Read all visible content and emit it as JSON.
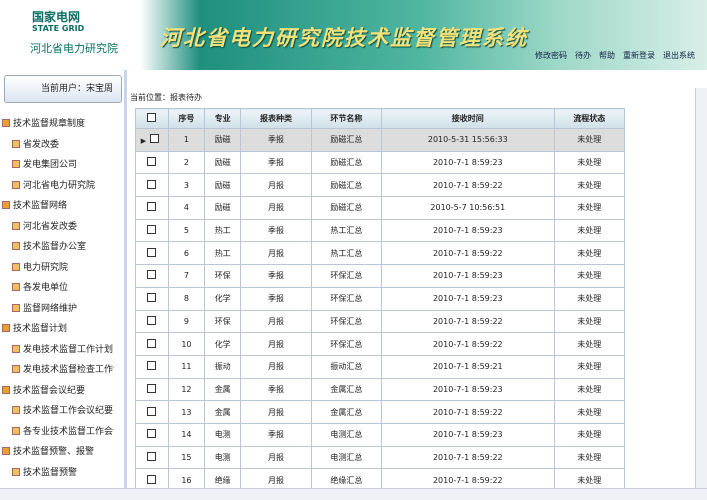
{
  "header": {
    "logo_cn": "国家电网",
    "logo_en": "STATE GRID",
    "org": "河北省电力研究院",
    "title": "河北省电力研究院技术监督管理系统",
    "nav": [
      "修改密码",
      "待办",
      "帮助",
      "重新登录",
      "退出系统"
    ]
  },
  "sidebar": {
    "user": "当前用户：宋宝周",
    "tree": [
      {
        "label": "技术监督规章制度",
        "children": [
          "省发改委",
          "发电集团公司",
          "河北省电力研究院"
        ]
      },
      {
        "label": "技术监督网络",
        "children": [
          "河北省发改委",
          "技术监督办公室",
          "电力研究院",
          "各发电单位",
          "监督网络维护"
        ]
      },
      {
        "label": "技术监督计划",
        "children": [
          "发电技术监督工作计划",
          "发电技术监督检查工作计划"
        ]
      },
      {
        "label": "技术监督会议纪要",
        "children": [
          "技术监督工作会议纪要",
          "各专业技术监督工作会议纪"
        ]
      },
      {
        "label": "技术监督预警、报警",
        "children": [
          "技术监督预警"
        ]
      }
    ]
  },
  "breadcrumb": "当前位置：报表待办",
  "table": {
    "columns": [
      "序号",
      "专业",
      "报表种类",
      "环节名称",
      "接收时间",
      "流程状态"
    ],
    "rows": [
      [
        "1",
        "励磁",
        "季报",
        "励磁汇总",
        "2010-5-31 15:56:33",
        "未处理"
      ],
      [
        "2",
        "励磁",
        "季报",
        "励磁汇总",
        "2010-7-1 8:59:23",
        "未处理"
      ],
      [
        "3",
        "励磁",
        "月报",
        "励磁汇总",
        "2010-7-1 8:59:22",
        "未处理"
      ],
      [
        "4",
        "励磁",
        "月报",
        "励磁汇总",
        "2010-5-7 10:56:51",
        "未处理"
      ],
      [
        "5",
        "热工",
        "季报",
        "热工汇总",
        "2010-7-1 8:59:23",
        "未处理"
      ],
      [
        "6",
        "热工",
        "月报",
        "热工汇总",
        "2010-7-1 8:59:22",
        "未处理"
      ],
      [
        "7",
        "环保",
        "季报",
        "环保汇总",
        "2010-7-1 8:59:23",
        "未处理"
      ],
      [
        "8",
        "化学",
        "季报",
        "环保汇总",
        "2010-7-1 8:59:23",
        "未处理"
      ],
      [
        "9",
        "环保",
        "月报",
        "环保汇总",
        "2010-7-1 8:59:22",
        "未处理"
      ],
      [
        "10",
        "化学",
        "月报",
        "环保汇总",
        "2010-7-1 8:59:22",
        "未处理"
      ],
      [
        "11",
        "振动",
        "月报",
        "振动汇总",
        "2010-7-1 8:59:21",
        "未处理"
      ],
      [
        "12",
        "金属",
        "季报",
        "金属汇总",
        "2010-7-1 8:59:23",
        "未处理"
      ],
      [
        "13",
        "金属",
        "月报",
        "金属汇总",
        "2010-7-1 8:59:22",
        "未处理"
      ],
      [
        "14",
        "电测",
        "季报",
        "电测汇总",
        "2010-7-1 8:59:23",
        "未处理"
      ],
      [
        "15",
        "电测",
        "月报",
        "电测汇总",
        "2010-7-1 8:59:22",
        "未处理"
      ],
      [
        "16",
        "绝缘",
        "月报",
        "绝缘汇总",
        "2010-7-1 8:59:22",
        "未处理"
      ]
    ]
  }
}
